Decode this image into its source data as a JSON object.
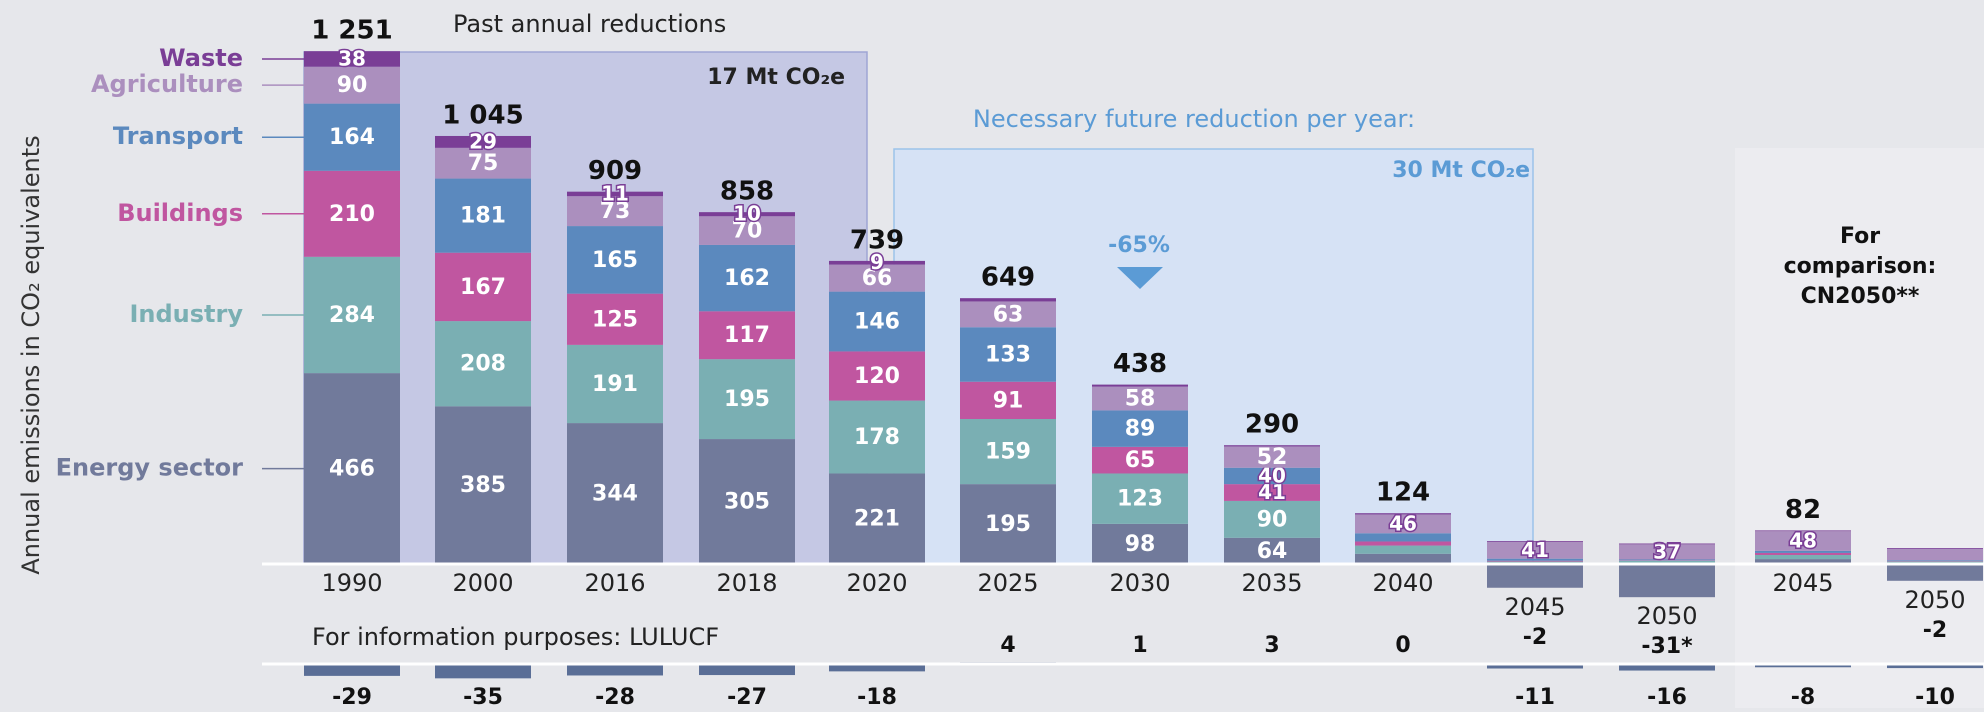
{
  "chart_data": {
    "type": "bar",
    "stacked": true,
    "y_axis_label": "Annual emissions in CO₂ equivalents",
    "categories": [
      "1990",
      "2000",
      "2016",
      "2018",
      "2020",
      "2025",
      "2030",
      "2035",
      "2040",
      "2045",
      "2050",
      "2045",
      "2050"
    ],
    "series": [
      {
        "name": "Energy sector",
        "color": "#717a9b",
        "values": [
          466,
          385,
          344,
          305,
          221,
          195,
          98,
          64,
          25,
          -58,
          -81,
          12,
          -41
        ],
        "value_labels": [
          "466",
          "385",
          "344",
          "305",
          "221",
          "195",
          "98",
          "64",
          null,
          null,
          null,
          null,
          null
        ]
      },
      {
        "name": "Industry",
        "color": "#7aafb3",
        "values": [
          284,
          208,
          191,
          195,
          178,
          159,
          123,
          90,
          20,
          6,
          8,
          10,
          6
        ],
        "value_labels": [
          "284",
          "208",
          "191",
          "195",
          "178",
          "159",
          "123",
          "90",
          null,
          null,
          null,
          null,
          null
        ]
      },
      {
        "name": "Buildings",
        "color": "#c056a0",
        "values": [
          210,
          167,
          125,
          117,
          120,
          91,
          65,
          41,
          10,
          2,
          1,
          5,
          1
        ],
        "value_labels": [
          "210",
          "167",
          "125",
          "117",
          "120",
          "91",
          "65",
          "41",
          null,
          null,
          null,
          null,
          null
        ]
      },
      {
        "name": "Transport",
        "color": "#5b89be",
        "values": [
          164,
          181,
          165,
          162,
          146,
          133,
          89,
          40,
          20,
          5,
          2,
          5,
          2
        ],
        "value_labels": [
          "164",
          "181",
          "165",
          "162",
          "146",
          "133",
          "89",
          "40",
          null,
          null,
          null,
          null,
          null
        ]
      },
      {
        "name": "Agriculture",
        "color": "#ab8fbe",
        "values": [
          90,
          75,
          73,
          70,
          66,
          63,
          58,
          52,
          46,
          41,
          37,
          48,
          28
        ],
        "value_labels": [
          "90",
          "75",
          "73",
          "70",
          "66",
          "63",
          "58",
          "52",
          "46",
          "41",
          "37",
          "48",
          null
        ]
      },
      {
        "name": "Waste",
        "color": "#7a3e96",
        "values": [
          38,
          29,
          11,
          10,
          9,
          8,
          5,
          3,
          3,
          2,
          2,
          2,
          2
        ],
        "value_labels": [
          "38",
          "29",
          "11",
          "10",
          "9",
          null,
          null,
          null,
          null,
          null,
          null,
          null,
          null
        ]
      }
    ],
    "totals": [
      1251,
      1045,
      909,
      858,
      739,
      649,
      438,
      290,
      124,
      -2,
      -31,
      82,
      -2
    ],
    "total_labels": [
      "1 251",
      "1 045",
      "909",
      "858",
      "739",
      "649",
      "438",
      "290",
      "124",
      "-2",
      "-31*",
      "82",
      "-2"
    ],
    "lulucf_label": "For information purposes: LULUCF",
    "lulucf": [
      -29,
      -35,
      -28,
      -27,
      -18,
      4,
      1,
      3,
      0,
      -11,
      -16,
      -8,
      -10
    ],
    "lulucf_color": "#5a6e96",
    "annotations": {
      "past_title": "Past annual reductions",
      "past_rate": "17 Mt CO₂e",
      "future_title": "Necessary future reduction per year:",
      "future_rate": "30 Mt CO₂e",
      "reduction": "-65%",
      "comparison": "For comparison: CN2050**"
    }
  }
}
